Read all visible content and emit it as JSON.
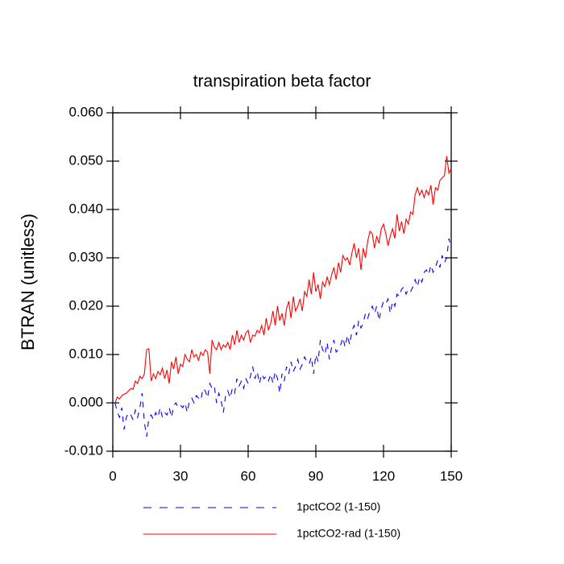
{
  "chart_data": {
    "type": "line",
    "title": "transpiration beta factor",
    "y_label": "BTRAN  (unitless)",
    "x": [
      1,
      2,
      3,
      4,
      5,
      6,
      7,
      8,
      9,
      10,
      11,
      12,
      13,
      14,
      15,
      16,
      17,
      18,
      19,
      20,
      21,
      22,
      23,
      24,
      25,
      26,
      27,
      28,
      29,
      30,
      31,
      32,
      33,
      34,
      35,
      36,
      37,
      38,
      39,
      40,
      41,
      42,
      43,
      44,
      45,
      46,
      47,
      48,
      49,
      50,
      51,
      52,
      53,
      54,
      55,
      56,
      57,
      58,
      59,
      60,
      61,
      62,
      63,
      64,
      65,
      66,
      67,
      68,
      69,
      70,
      71,
      72,
      73,
      74,
      75,
      76,
      77,
      78,
      79,
      80,
      81,
      82,
      83,
      84,
      85,
      86,
      87,
      88,
      89,
      90,
      91,
      92,
      93,
      94,
      95,
      96,
      97,
      98,
      99,
      100,
      101,
      102,
      103,
      104,
      105,
      106,
      107,
      108,
      109,
      110,
      111,
      112,
      113,
      114,
      115,
      116,
      117,
      118,
      119,
      120,
      121,
      122,
      123,
      124,
      125,
      126,
      127,
      128,
      129,
      130,
      131,
      132,
      133,
      134,
      135,
      136,
      137,
      138,
      139,
      140,
      141,
      142,
      143,
      144,
      145,
      146,
      147,
      148,
      149,
      150
    ],
    "series": [
      {
        "name": "1pctCO2 (1-150)",
        "color": "#0000ff",
        "line_style": "dashed",
        "values": [
          0.0,
          -0.002,
          -0.003,
          -0.001,
          -0.0055,
          -0.003,
          -0.002,
          -0.0025,
          -0.0035,
          -0.0015,
          -0.003,
          -0.001,
          0.002,
          -0.004,
          -0.007,
          -0.003,
          -0.0025,
          -0.0035,
          -0.002,
          -0.003,
          -0.001,
          -0.003,
          -0.002,
          -0.0025,
          -0.001,
          -0.003,
          -0.0005,
          0.0,
          -0.001,
          -0.0005,
          -0.001,
          0.0,
          -0.002,
          0.0005,
          0.001,
          0.0,
          0.0015,
          0.001,
          0.0005,
          0.003,
          0.0025,
          0.001,
          0.004,
          0.003,
          0.0035,
          0.0,
          0.002,
          0.0005,
          -0.002,
          0.0015,
          0.0025,
          0.001,
          0.003,
          0.002,
          0.005,
          0.0035,
          0.0045,
          0.003,
          0.005,
          0.004,
          0.0055,
          0.0075,
          0.005,
          0.0065,
          0.004,
          0.006,
          0.005,
          0.0055,
          0.0045,
          0.006,
          0.004,
          0.0065,
          0.005,
          0.002,
          0.006,
          0.0045,
          0.0075,
          0.006,
          0.0085,
          0.0065,
          0.0075,
          0.009,
          0.007,
          0.008,
          0.0095,
          0.0085,
          0.008,
          0.0095,
          0.006,
          0.01,
          0.0085,
          0.013,
          0.011,
          0.01,
          0.0125,
          0.009,
          0.0115,
          0.013,
          0.0105,
          0.011,
          0.012,
          0.0135,
          0.0115,
          0.014,
          0.012,
          0.015,
          0.016,
          0.014,
          0.017,
          0.0155,
          0.0165,
          0.0185,
          0.0175,
          0.019,
          0.02,
          0.0185,
          0.02,
          0.017,
          0.0195,
          0.021,
          0.0205,
          0.0215,
          0.0185,
          0.021,
          0.02,
          0.0225,
          0.022,
          0.0235,
          0.024,
          0.0225,
          0.0235,
          0.023,
          0.024,
          0.0255,
          0.024,
          0.026,
          0.025,
          0.027,
          0.0275,
          0.0265,
          0.0285,
          0.027,
          0.028,
          0.0295,
          0.028,
          0.0305,
          0.029,
          0.03,
          0.034,
          0.032
        ]
      },
      {
        "name": "1pctCO2-rad (1-150)",
        "color": "#ff0000",
        "line_style": "solid",
        "values": [
          0.0,
          0.0012,
          0.0008,
          0.0015,
          0.0018,
          0.002,
          0.0025,
          0.003,
          0.0028,
          0.0045,
          0.004,
          0.0055,
          0.005,
          0.006,
          0.011,
          0.0112,
          0.0045,
          0.006,
          0.005,
          0.0065,
          0.0058,
          0.0072,
          0.005,
          0.0068,
          0.004,
          0.0085,
          0.007,
          0.0095,
          0.006,
          0.008,
          0.0075,
          0.01,
          0.009,
          0.0085,
          0.011,
          0.0095,
          0.01,
          0.0088,
          0.0105,
          0.0098,
          0.011,
          0.0105,
          0.006,
          0.013,
          0.0115,
          0.011,
          0.0125,
          0.011,
          0.012,
          0.0115,
          0.0125,
          0.011,
          0.014,
          0.012,
          0.015,
          0.0125,
          0.014,
          0.013,
          0.0145,
          0.015,
          0.0125,
          0.014,
          0.0138,
          0.015,
          0.0145,
          0.016,
          0.014,
          0.0175,
          0.015,
          0.0165,
          0.019,
          0.016,
          0.02,
          0.017,
          0.0185,
          0.016,
          0.0195,
          0.021,
          0.0175,
          0.022,
          0.019,
          0.02,
          0.0215,
          0.019,
          0.023,
          0.022,
          0.0255,
          0.0225,
          0.027,
          0.023,
          0.0245,
          0.0215,
          0.025,
          0.024,
          0.026,
          0.0245,
          0.0265,
          0.028,
          0.0255,
          0.029,
          0.027,
          0.0305,
          0.0295,
          0.03,
          0.0285,
          0.031,
          0.033,
          0.03,
          0.032,
          0.0275,
          0.032,
          0.03,
          0.0335,
          0.0355,
          0.035,
          0.032,
          0.0345,
          0.033,
          0.036,
          0.037,
          0.035,
          0.0325,
          0.0345,
          0.036,
          0.034,
          0.039,
          0.0355,
          0.0375,
          0.035,
          0.038,
          0.037,
          0.0395,
          0.039,
          0.043,
          0.0445,
          0.043,
          0.044,
          0.0425,
          0.044,
          0.043,
          0.045,
          0.041,
          0.0445,
          0.044,
          0.046,
          0.0465,
          0.047,
          0.051,
          0.0475,
          0.0485
        ]
      }
    ],
    "xlim": [
      0,
      150
    ],
    "xticks": [
      0,
      30,
      60,
      90,
      120,
      150
    ],
    "ylim": [
      -0.01,
      0.06
    ],
    "yticks": [
      {
        "value": -0.01,
        "label": "-0.010"
      },
      {
        "value": 0,
        "label": "0.000"
      },
      {
        "value": 0.01,
        "label": "0.010"
      },
      {
        "value": 0.02,
        "label": "0.020"
      },
      {
        "value": 0.03,
        "label": "0.030"
      },
      {
        "value": 0.04,
        "label": "0.040"
      },
      {
        "value": 0.05,
        "label": "0.050"
      },
      {
        "value": 0.06,
        "label": "0.060"
      }
    ],
    "grid": false,
    "legend": "bottom"
  }
}
